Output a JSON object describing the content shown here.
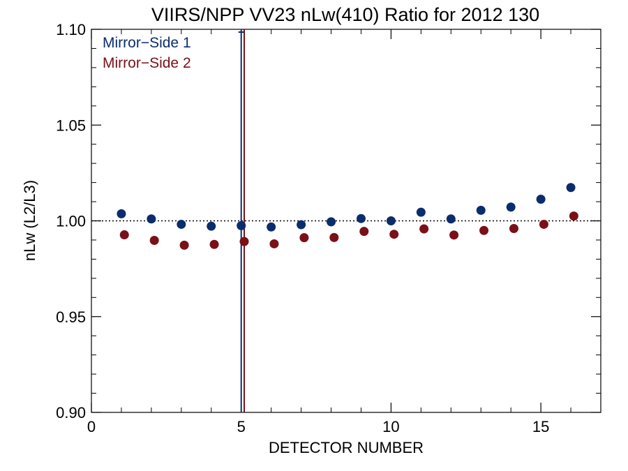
{
  "chart_data": {
    "type": "scatter",
    "title": "VIIRS/NPP VV23 nLw(410) Ratio for 2012 130",
    "xlabel": "DETECTOR NUMBER",
    "ylabel": "nLw (L2/L3)",
    "xlim": [
      0,
      17
    ],
    "ylim": [
      0.9,
      1.1
    ],
    "x_ticks": [
      0,
      5,
      10,
      15
    ],
    "y_ticks": [
      0.9,
      0.95,
      1.0,
      1.05,
      1.1
    ],
    "x_tick_labels": [
      "0",
      "5",
      "10",
      "15"
    ],
    "y_tick_labels": [
      "0.90",
      "0.95",
      "1.00",
      "1.05",
      "1.10"
    ],
    "reference_line": 1.0,
    "legend_position": "top-left",
    "vertical_lines": [
      {
        "x": 5.0,
        "color": "#0a2d6e"
      },
      {
        "x": 5.1,
        "color": "#7a1018"
      }
    ],
    "series": [
      {
        "name": "Mirror−Side 1",
        "color": "#0a2d6e",
        "x": [
          1,
          2,
          3,
          4,
          5,
          6,
          7,
          8,
          9,
          10,
          11,
          12,
          13,
          14,
          15,
          16
        ],
        "values": [
          1.0037,
          1.001,
          0.9982,
          0.9972,
          0.9975,
          0.9968,
          0.998,
          0.9995,
          1.0012,
          1.0,
          1.0045,
          1.001,
          1.0055,
          1.0072,
          1.0113,
          1.0174
        ]
      },
      {
        "name": "Mirror−Side 2",
        "color": "#7a1018",
        "x": [
          1.1,
          2.1,
          3.1,
          4.1,
          5.1,
          6.1,
          7.1,
          8.1,
          9.1,
          10.1,
          11.1,
          12.1,
          13.1,
          14.1,
          15.1,
          16.1
        ],
        "values": [
          0.9927,
          0.9898,
          0.9873,
          0.9877,
          0.9892,
          0.988,
          0.9912,
          0.9913,
          0.9945,
          0.993,
          0.9958,
          0.9926,
          0.995,
          0.996,
          0.9982,
          1.0025
        ]
      }
    ]
  }
}
